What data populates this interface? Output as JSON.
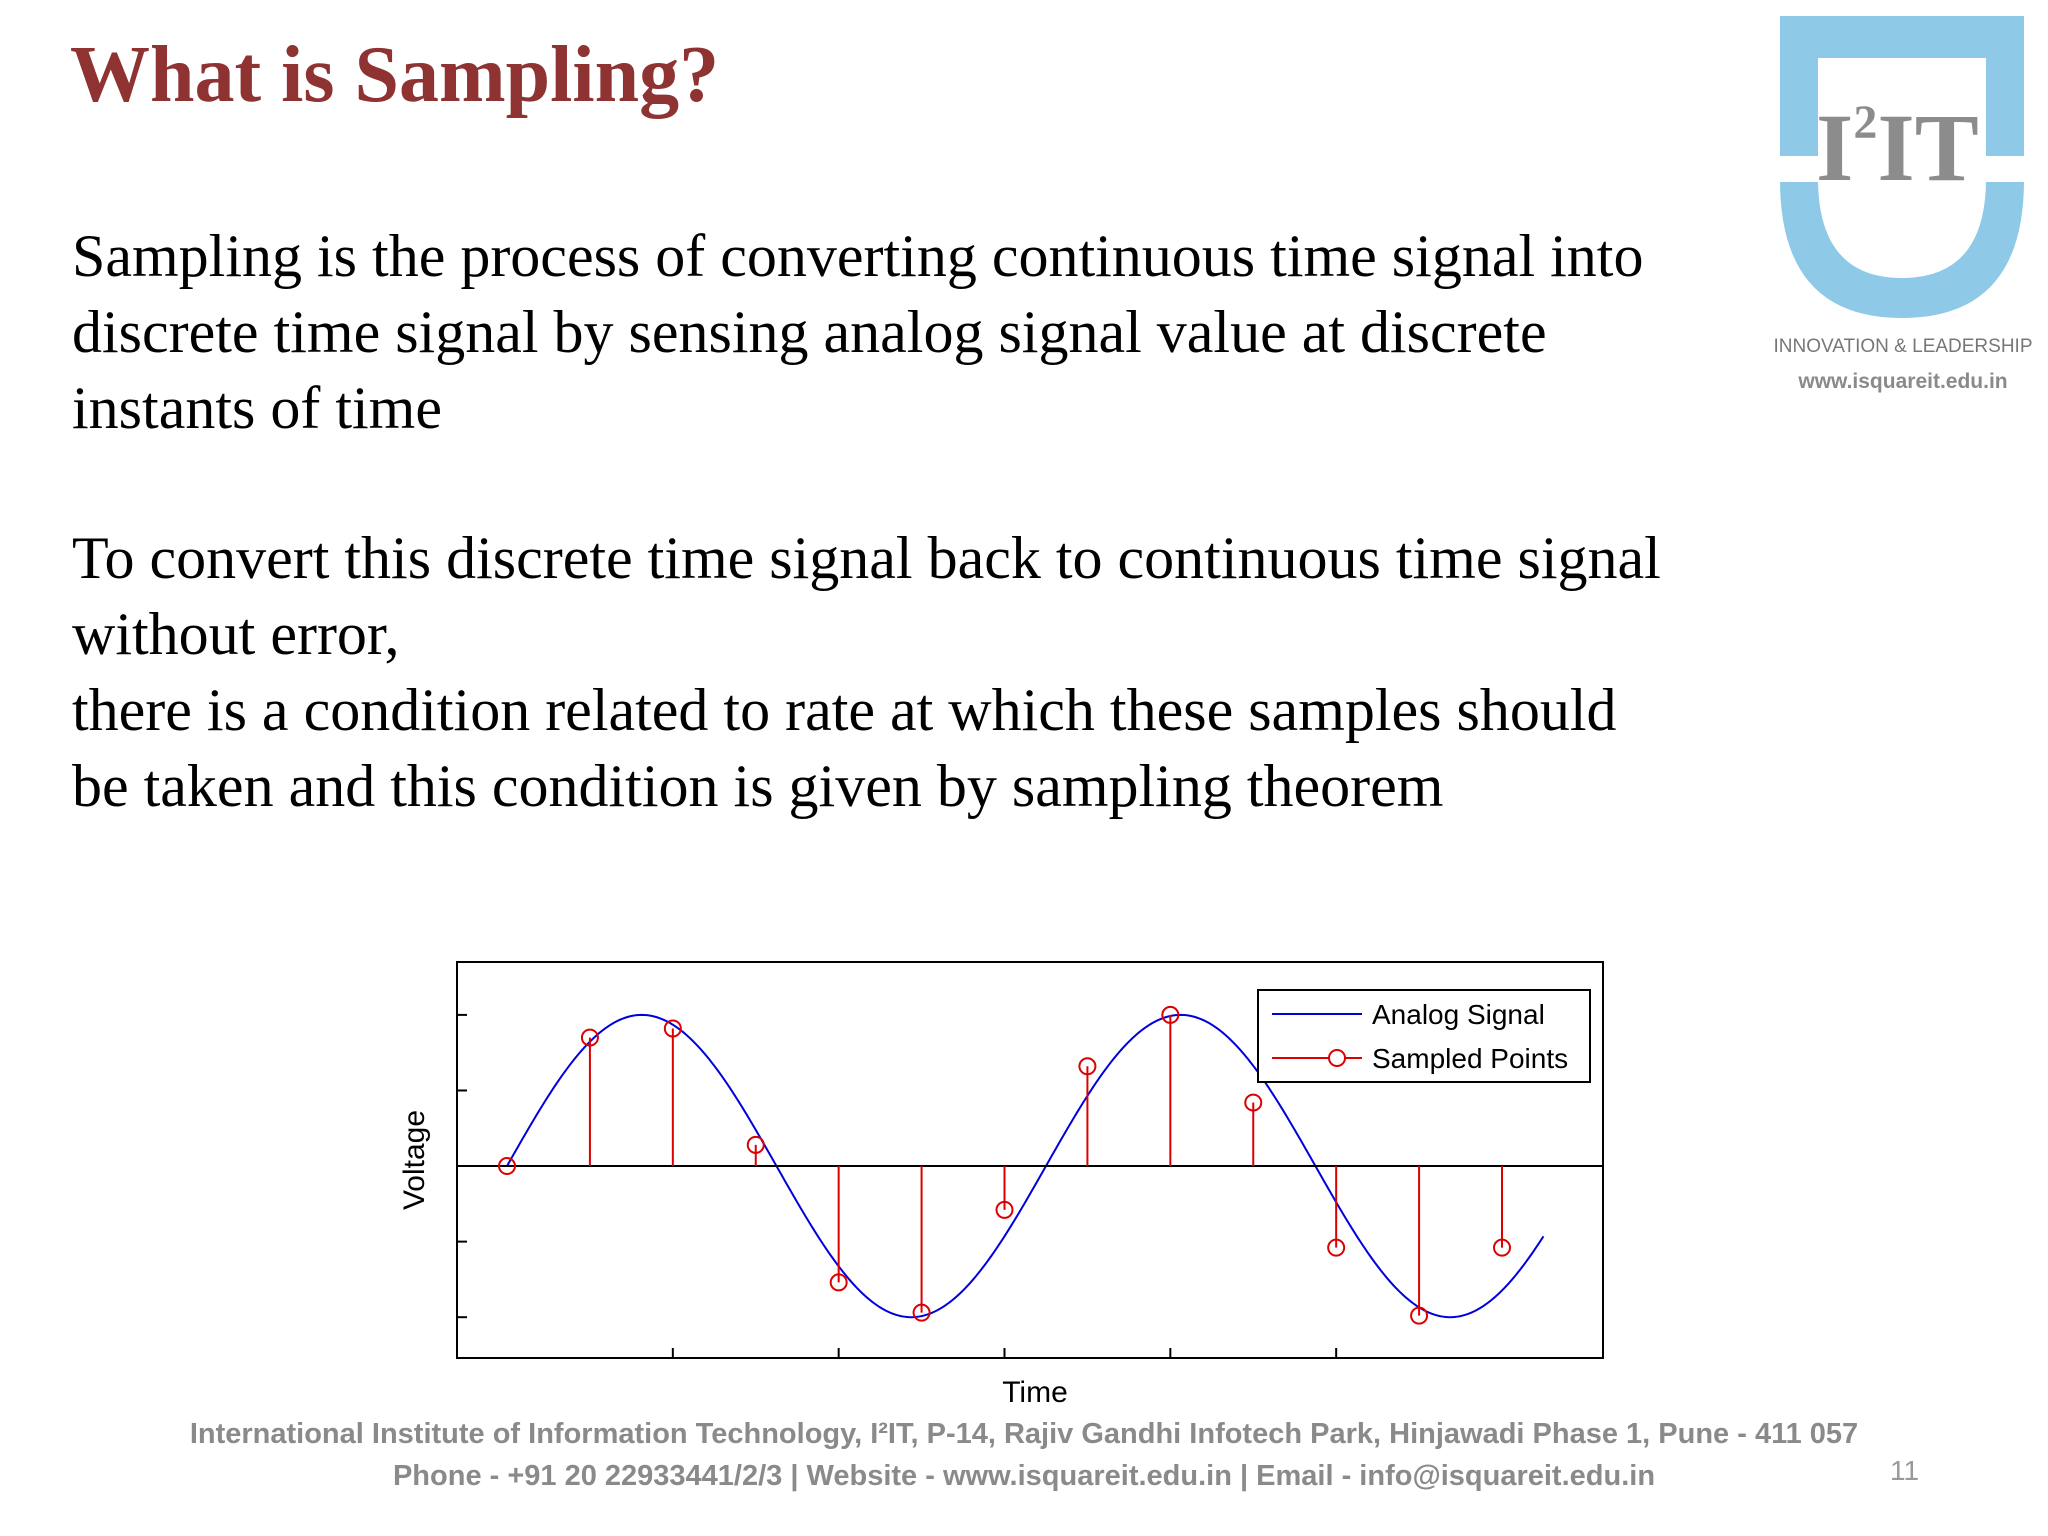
{
  "slide": {
    "title": "What is Sampling?",
    "paragraph1": [
      "Sampling is the process of converting continuous time signal into",
      "discrete time signal by sensing analog signal value at discrete",
      "instants of time"
    ],
    "paragraph2": [
      "To convert this discrete time signal back to continuous time signal",
      "without error,",
      "there is a condition related to rate at  which these samples should",
      "be taken  and this condition is given by sampling theorem"
    ],
    "page_number": "11"
  },
  "logo": {
    "text_main": "I",
    "text_sup": "2",
    "text_end": "IT",
    "tagline": "INNOVATION & LEADERSHIP",
    "url": "www.isquareit.edu.in",
    "colors": {
      "shield": "#8ec9e8",
      "letters": "#8c8c8c"
    }
  },
  "footer": {
    "line1": "International Institute of Information Technology, I²IT, P-14, Rajiv Gandhi Infotech Park, Hinjawadi Phase 1, Pune - 411 057",
    "line2": "Phone - +91 20 22933441/2/3 | Website - www.isquareit.edu.in | Email - info@isquareit.edu.in"
  },
  "chart_data": {
    "type": "line",
    "xlabel": "Time",
    "ylabel": "Voltage",
    "xlim": [
      0,
      12.5
    ],
    "ylim": [
      -1.27,
      1.35
    ],
    "grid": false,
    "legend_position": "top-right",
    "series": [
      {
        "name": "Analog Signal",
        "kind": "line",
        "color": "#0000dd",
        "function": "sine",
        "period": 6.5,
        "amplitude": 1.0,
        "x_start": 0,
        "x_end": 12.5
      },
      {
        "name": "Sampled Points",
        "kind": "stem",
        "color": "#dd0000",
        "x": [
          0,
          1,
          2,
          3,
          4,
          5,
          6,
          7,
          8,
          9,
          10,
          11,
          12
        ],
        "y": [
          0,
          0.85,
          0.91,
          0.14,
          -0.77,
          -0.97,
          -0.29,
          0.66,
          1.0,
          0.42,
          -0.54,
          -0.99,
          -0.54
        ]
      }
    ]
  }
}
